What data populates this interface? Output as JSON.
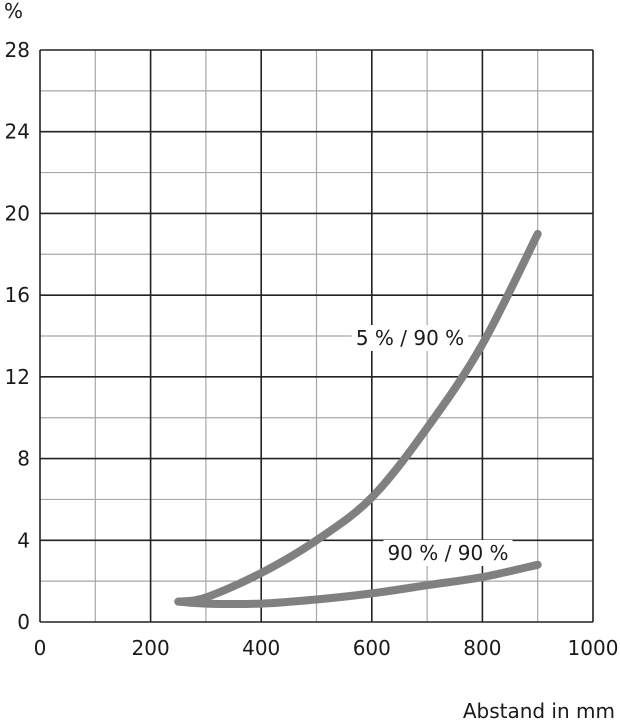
{
  "chart_data": {
    "type": "line",
    "title": "",
    "xlabel": "Abstand in mm",
    "ylabel": "%",
    "xlim": [
      0,
      1000
    ],
    "ylim": [
      0,
      28
    ],
    "x_ticks": [
      0,
      200,
      400,
      600,
      800,
      1000
    ],
    "y_ticks": [
      0,
      4,
      8,
      12,
      16,
      20,
      24,
      28
    ],
    "grid": true,
    "x_minor_step": 100,
    "y_minor_step": 2,
    "series": [
      {
        "name": "5 % / 90 %",
        "color": "#808080",
        "x": [
          250,
          300,
          400,
          500,
          600,
          700,
          800,
          900
        ],
        "y": [
          1.0,
          1.2,
          2.4,
          4.0,
          6.1,
          9.5,
          13.6,
          19.0
        ]
      },
      {
        "name": "90 % / 90 %",
        "color": "#808080",
        "x": [
          250,
          300,
          400,
          500,
          600,
          700,
          800,
          900
        ],
        "y": [
          1.0,
          0.9,
          0.9,
          1.1,
          1.4,
          1.8,
          2.2,
          2.8
        ]
      }
    ]
  }
}
